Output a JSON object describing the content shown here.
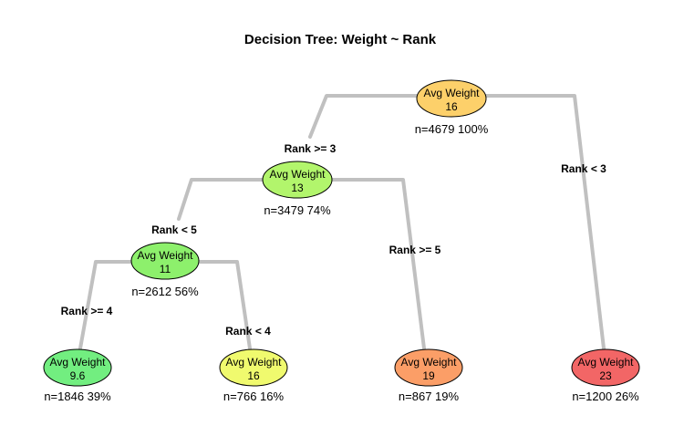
{
  "title": "Decision Tree: Weight ~ Rank",
  "nodes": {
    "root": {
      "label": "Avg Weight",
      "value": "16",
      "stats": "n=4679  100%",
      "color": "#FDD06A"
    },
    "n13": {
      "label": "Avg Weight",
      "value": "13",
      "stats": "n=3479  74%",
      "color": "#B2F56C"
    },
    "n11": {
      "label": "Avg Weight",
      "value": "11",
      "stats": "n=2612  56%",
      "color": "#8DF06C"
    },
    "leaf96": {
      "label": "Avg Weight",
      "value": "9.6",
      "stats": "n=1846  39%",
      "color": "#72EE80"
    },
    "leaf16": {
      "label": "Avg Weight",
      "value": "16",
      "stats": "n=766  16%",
      "color": "#F0FA6E"
    },
    "leaf19": {
      "label": "Avg Weight",
      "value": "19",
      "stats": "n=867  19%",
      "color": "#FB9E67"
    },
    "leaf23": {
      "label": "Avg Weight",
      "value": "23",
      "stats": "n=1200  26%",
      "color": "#F26666"
    }
  },
  "edges": {
    "root_left": "Rank >= 3",
    "root_right": "Rank < 3",
    "n13_left": "Rank < 5",
    "n13_right": "Rank >= 5",
    "n11_left": "Rank >= 4",
    "n11_right": "Rank < 4"
  }
}
